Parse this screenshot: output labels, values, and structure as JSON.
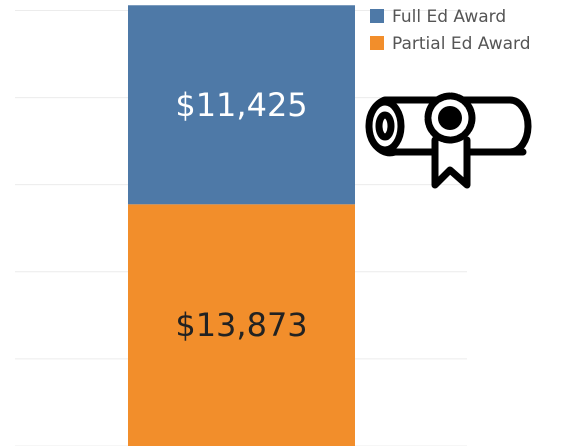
{
  "chart_data": {
    "type": "stacked_bar",
    "categories": [
      null
    ],
    "series": [
      {
        "name": "Full Ed Award",
        "color": "#4e79a7",
        "values": [
          11425
        ],
        "value_labels": [
          "$11,425"
        ],
        "label_color": "#ffffff"
      },
      {
        "name": "Partial Ed Award",
        "color": "#f28e2b",
        "values": [
          13873
        ],
        "value_labels": [
          "$13,873"
        ],
        "label_color": "#222222"
      }
    ],
    "ylim": [
      0,
      25600
    ],
    "yticks": [
      0,
      5000,
      10000,
      15000,
      20000,
      25000
    ],
    "grid": true,
    "legend": "top-right"
  }
}
